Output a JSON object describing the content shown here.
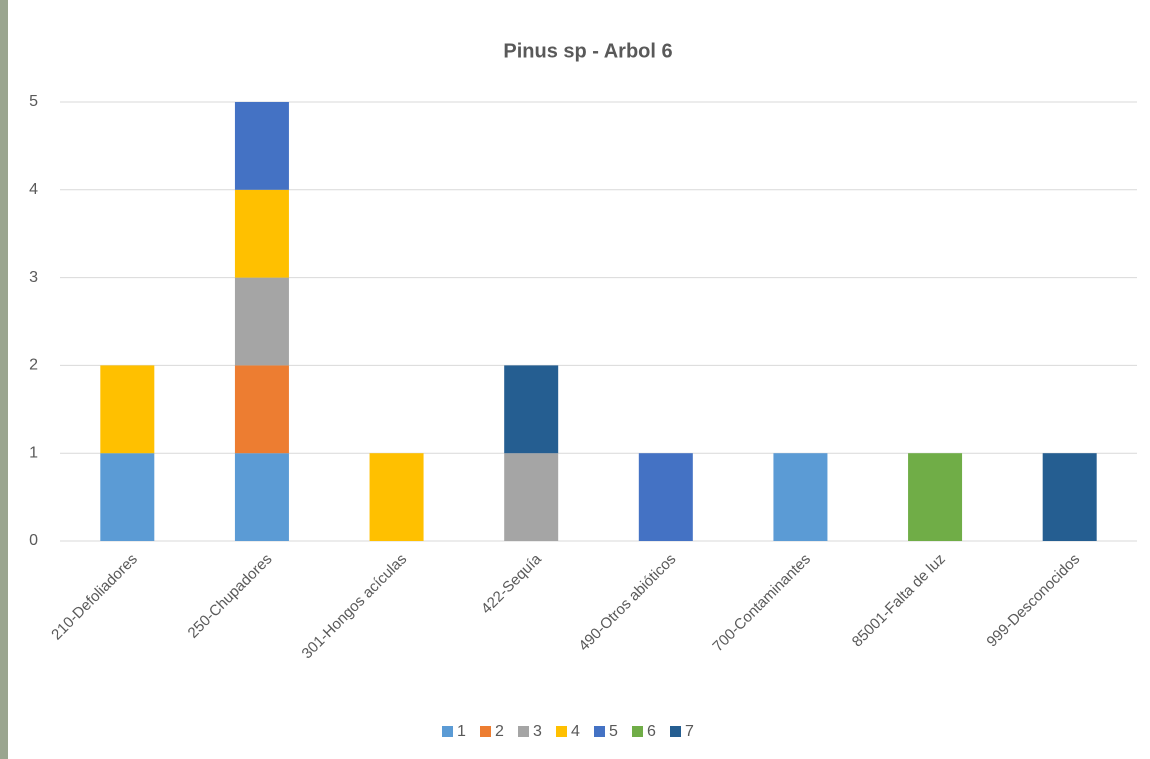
{
  "chart_data": {
    "type": "stacked-bar",
    "title": "Pinus sp - Arbol 6",
    "categories": [
      "210-Defoliadores",
      "250-Chupadores",
      "301-Hongos acículas",
      "422-Sequía",
      "490-Otros abióticos",
      "700-Contaminantes",
      "85001-Falta de luz",
      "999-Desconocidos"
    ],
    "series": [
      {
        "name": "1",
        "color": "#5b9bd5",
        "values": [
          1,
          1,
          0,
          0,
          0,
          1,
          0,
          0
        ]
      },
      {
        "name": "2",
        "color": "#ed7d31",
        "values": [
          0,
          1,
          0,
          0,
          0,
          0,
          0,
          0
        ]
      },
      {
        "name": "3",
        "color": "#a5a5a5",
        "values": [
          0,
          1,
          0,
          1,
          0,
          0,
          0,
          0
        ]
      },
      {
        "name": "4",
        "color": "#ffc000",
        "values": [
          1,
          1,
          1,
          0,
          0,
          0,
          0,
          0
        ]
      },
      {
        "name": "5",
        "color": "#4472c4",
        "values": [
          0,
          1,
          0,
          0,
          1,
          0,
          0,
          0
        ]
      },
      {
        "name": "6",
        "color": "#70ad47",
        "values": [
          0,
          0,
          0,
          0,
          0,
          0,
          1,
          0
        ]
      },
      {
        "name": "7",
        "color": "#255e91",
        "values": [
          0,
          0,
          0,
          1,
          0,
          0,
          0,
          1
        ]
      }
    ],
    "ylim": [
      0,
      5
    ],
    "yticks": [
      0,
      1,
      2,
      3,
      4,
      5
    ],
    "grid": true,
    "legend": "bottom"
  }
}
